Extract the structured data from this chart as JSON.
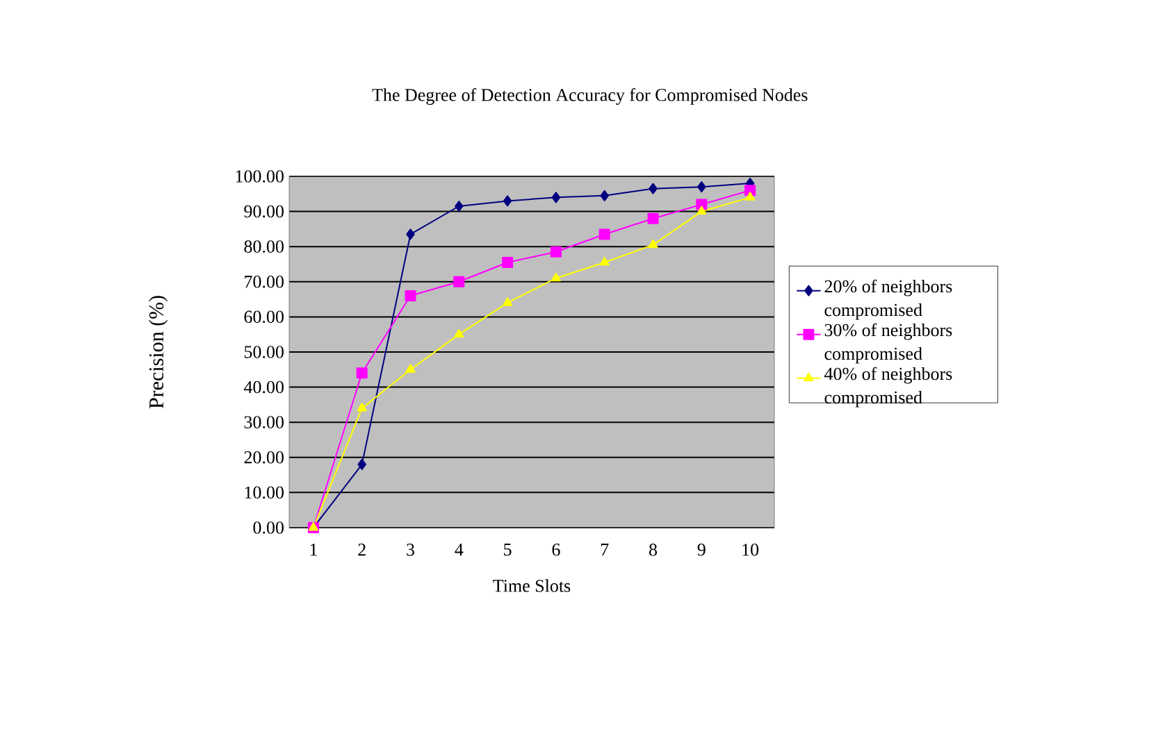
{
  "chart_data": {
    "type": "line",
    "title": "The Degree of Detection Accuracy for Compromised Nodes",
    "xlabel": "Time Slots",
    "ylabel": "Precision (%)",
    "categories": [
      "1",
      "2",
      "3",
      "4",
      "5",
      "6",
      "7",
      "8",
      "9",
      "10"
    ],
    "ylim": [
      0,
      100
    ],
    "yticks": [
      {
        "value": 0,
        "label": "0.00"
      },
      {
        "value": 10,
        "label": "10.00"
      },
      {
        "value": 20,
        "label": "20.00"
      },
      {
        "value": 30,
        "label": "30.00"
      },
      {
        "value": 40,
        "label": "40.00"
      },
      {
        "value": 50,
        "label": "50.00"
      },
      {
        "value": 60,
        "label": "60.00"
      },
      {
        "value": 70,
        "label": "70.00"
      },
      {
        "value": 80,
        "label": "80.00"
      },
      {
        "value": 90,
        "label": "90.00"
      },
      {
        "value": 100,
        "label": "100.00"
      }
    ],
    "grid": "y",
    "legend": "right",
    "series": [
      {
        "name": "20% of neighbors compromised",
        "color": "#000080",
        "marker": "diamond",
        "values": [
          0,
          18,
          83.5,
          91.5,
          93,
          94,
          94.5,
          96.5,
          97,
          98
        ]
      },
      {
        "name": "30% of neighbors compromised",
        "color": "#ff00ff",
        "marker": "square",
        "values": [
          0,
          44,
          66,
          70,
          75.5,
          78.5,
          83.5,
          88,
          92,
          96
        ]
      },
      {
        "name": "40% of neighbors compromised",
        "color": "#ffff00",
        "marker": "triangle",
        "values": [
          0,
          34,
          45,
          55,
          64,
          71,
          75.5,
          80.5,
          90,
          94
        ]
      }
    ]
  }
}
